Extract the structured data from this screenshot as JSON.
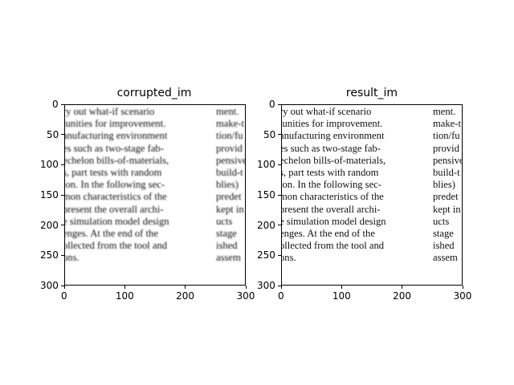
{
  "figure": {
    "panels": [
      {
        "title": "corrupted_im",
        "style": "blurred",
        "xticks": [
          "0",
          "100",
          "200",
          "300"
        ],
        "yticks": [
          "0",
          "50",
          "100",
          "150",
          "200",
          "250",
          "300"
        ]
      },
      {
        "title": "result_im",
        "style": "sharp",
        "xticks": [
          "0",
          "100",
          "200",
          "300"
        ],
        "yticks": [
          "0",
          "50",
          "100",
          "150",
          "200",
          "250",
          "300"
        ]
      }
    ],
    "text_left_column": [
      "ry out what-if scenario",
      "tunities for improvement.",
      "anufacturing environment",
      "es such as two-stage fab-",
      "echelon bills-of-materials,",
      "s, part tests with random",
      "ion. In the following sec-",
      "mon characteristics of the",
      "present the overall archi-",
      "e simulation model design",
      "enges. At the end of the",
      "ollected from the tool and",
      "ons."
    ],
    "text_right_column": [
      "ment.",
      "make-t",
      "tion/fu",
      "provid",
      "pensive",
      "build-t",
      "blies)",
      "predet",
      "kept in",
      "ucts",
      "stage",
      "ished",
      "assem"
    ]
  }
}
